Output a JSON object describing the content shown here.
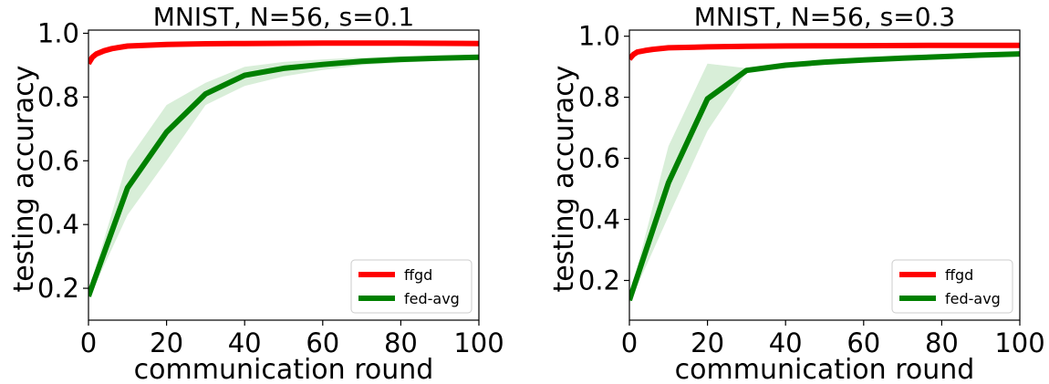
{
  "chart_data": [
    {
      "type": "line",
      "title": "MNIST, N=56, s=0.1",
      "xlabel": "communication round",
      "ylabel": "testing accuracy",
      "xlim": [
        0,
        100
      ],
      "ylim": [
        0.1,
        1.01
      ],
      "xticks": [
        0,
        20,
        40,
        60,
        80,
        100
      ],
      "yticks": [
        0.2,
        0.4,
        0.6,
        0.8,
        1.0
      ],
      "xtick_labels": [
        "0",
        "20",
        "40",
        "60",
        "80",
        "100"
      ],
      "ytick_labels": [
        "0.2",
        "0.4",
        "0.6",
        "0.8",
        "1.0"
      ],
      "legend_position": "lower-right",
      "grid": false,
      "series": [
        {
          "name": "ffgd",
          "color": "#ff0000",
          "x": [
            0,
            1,
            2,
            4,
            6,
            10,
            20,
            30,
            40,
            60,
            80,
            100
          ],
          "y": [
            0.905,
            0.925,
            0.935,
            0.945,
            0.952,
            0.96,
            0.965,
            0.967,
            0.968,
            0.969,
            0.969,
            0.968
          ]
        },
        {
          "name": "fed-avg",
          "color": "#008000",
          "band_color": "#d8eed8",
          "x": [
            0,
            10,
            20,
            30,
            40,
            50,
            60,
            70,
            80,
            90,
            100
          ],
          "y": [
            0.175,
            0.515,
            0.69,
            0.81,
            0.868,
            0.89,
            0.902,
            0.912,
            0.918,
            0.922,
            0.925
          ],
          "lower": [
            0.165,
            0.43,
            0.6,
            0.775,
            0.835,
            0.865,
            0.885,
            0.9,
            0.908,
            0.914,
            0.918
          ],
          "upper": [
            0.19,
            0.6,
            0.775,
            0.845,
            0.895,
            0.91,
            0.918,
            0.924,
            0.928,
            0.93,
            0.932
          ]
        }
      ]
    },
    {
      "type": "line",
      "title": "MNIST, N=56, s=0.3",
      "xlabel": "communication round",
      "ylabel": "testing accuracy",
      "xlim": [
        0,
        100
      ],
      "ylim": [
        0.07,
        1.02
      ],
      "xticks": [
        0,
        20,
        40,
        60,
        80,
        100
      ],
      "yticks": [
        0.2,
        0.4,
        0.6,
        0.8,
        1.0
      ],
      "xtick_labels": [
        "0",
        "20",
        "40",
        "60",
        "80",
        "100"
      ],
      "ytick_labels": [
        "0.2",
        "0.4",
        "0.6",
        "0.8",
        "1.0"
      ],
      "legend_position": "lower-right",
      "grid": false,
      "series": [
        {
          "name": "ffgd",
          "color": "#ff0000",
          "x": [
            0,
            1,
            2,
            4,
            6,
            10,
            20,
            30,
            40,
            60,
            80,
            100
          ],
          "y": [
            0.925,
            0.94,
            0.948,
            0.953,
            0.957,
            0.962,
            0.965,
            0.967,
            0.968,
            0.969,
            0.97,
            0.97
          ]
        },
        {
          "name": "fed-avg",
          "color": "#008000",
          "band_color": "#d8eed8",
          "x": [
            0,
            10,
            20,
            30,
            40,
            50,
            60,
            70,
            80,
            90,
            100
          ],
          "y": [
            0.135,
            0.52,
            0.795,
            0.888,
            0.905,
            0.915,
            0.922,
            0.928,
            0.933,
            0.938,
            0.942
          ],
          "lower": [
            0.125,
            0.41,
            0.69,
            0.882,
            0.9,
            0.91,
            0.918,
            0.925,
            0.93,
            0.935,
            0.94
          ],
          "upper": [
            0.145,
            0.64,
            0.91,
            0.895,
            0.91,
            0.92,
            0.927,
            0.932,
            0.936,
            0.941,
            0.945
          ]
        }
      ]
    }
  ]
}
